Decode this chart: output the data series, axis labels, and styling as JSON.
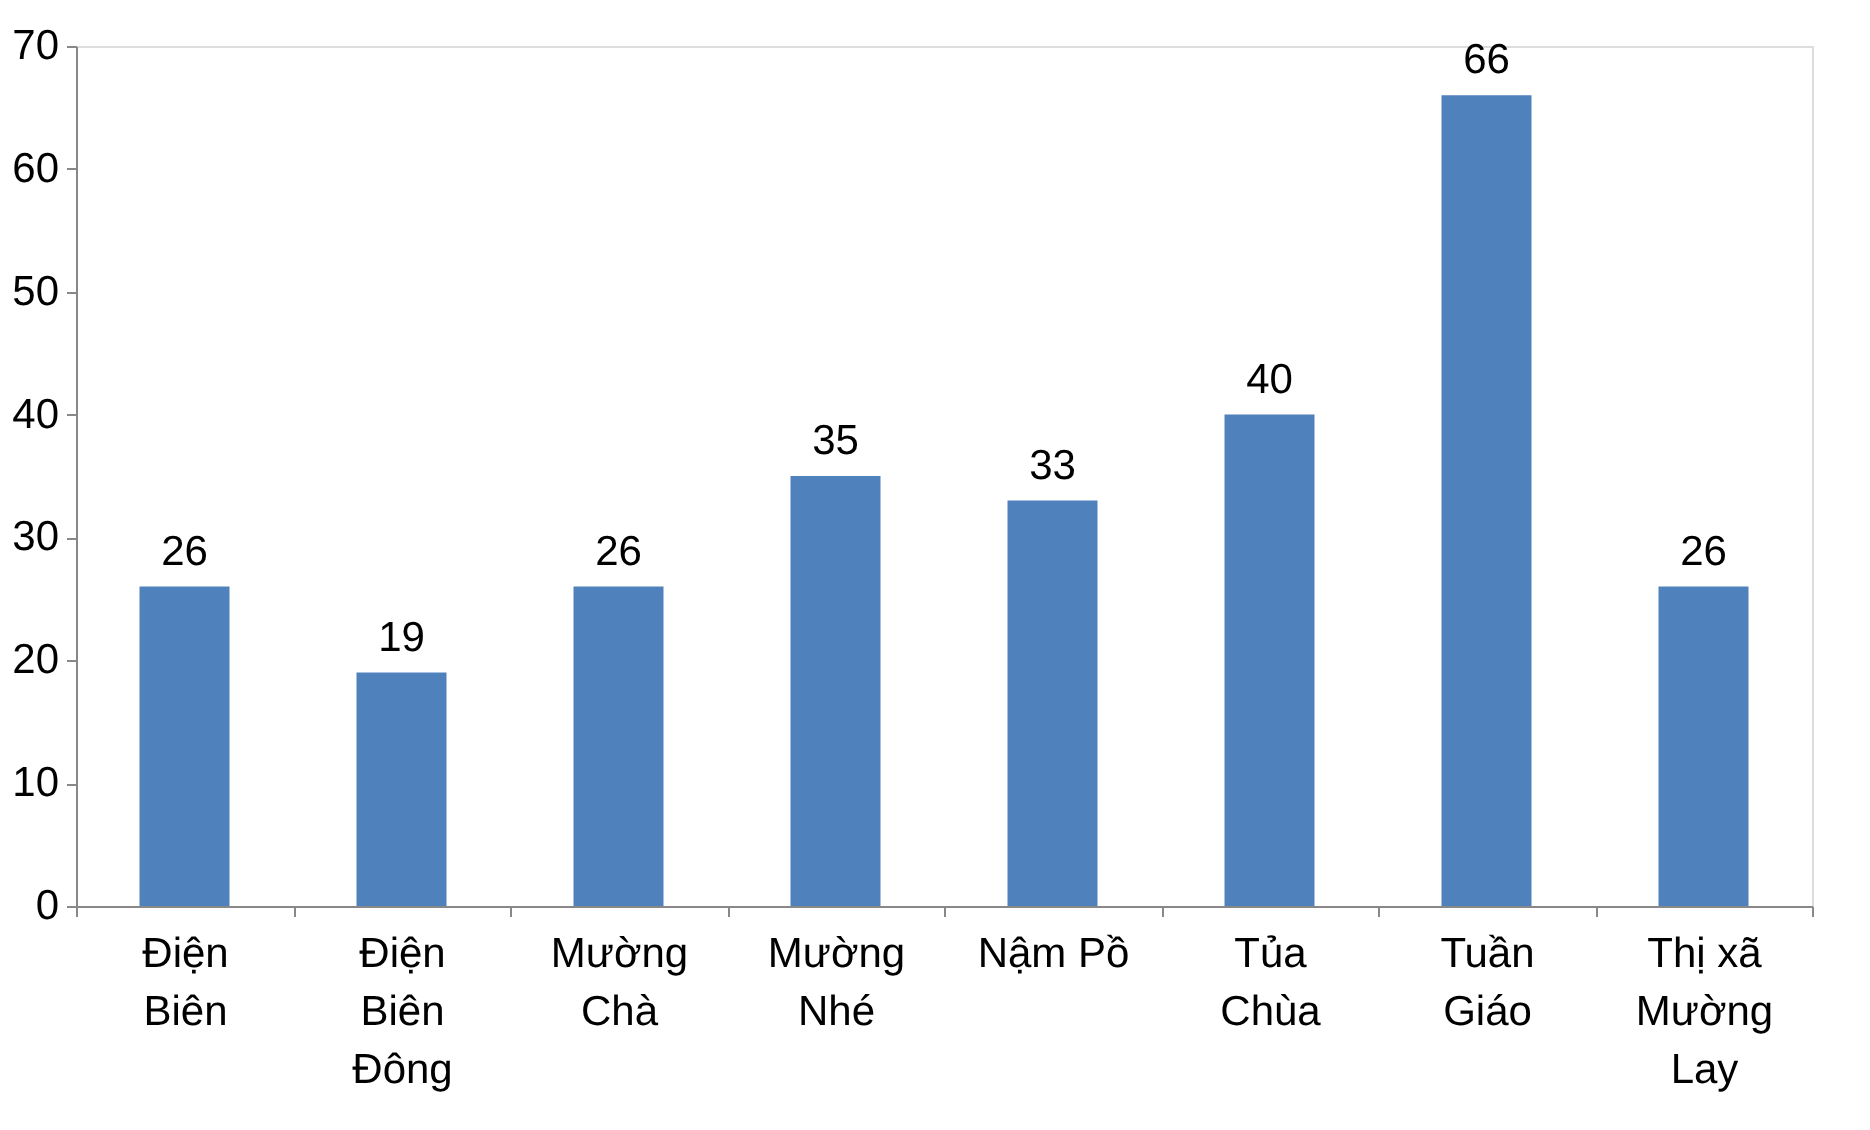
{
  "chart_data": {
    "type": "bar",
    "categories": [
      "Điện\nBiên",
      "Điện\nBiên\nĐông",
      "Mường\nChà",
      "Mường\nNhé",
      "Nậm Pồ",
      "Tủa\nChùa",
      "Tuần\nGiáo",
      "Thị xã\nMường\nLay"
    ],
    "values": [
      26,
      19,
      26,
      35,
      33,
      40,
      66,
      26
    ],
    "color": "#4f81bd",
    "ylim": [
      0,
      70
    ],
    "yticks": [
      0,
      10,
      20,
      30,
      40,
      50,
      60,
      70
    ],
    "data_labels": true,
    "grid": false
  }
}
